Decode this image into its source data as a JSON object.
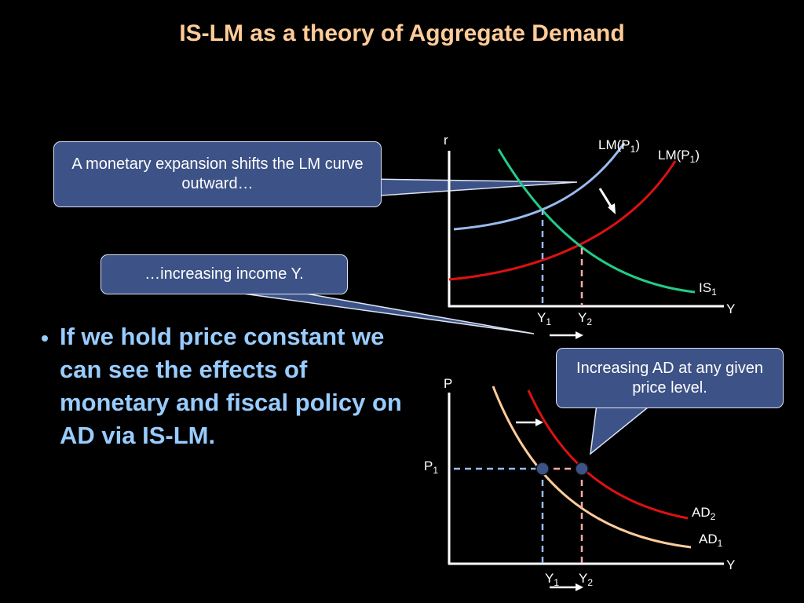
{
  "title": "IS-LM as a theory of Aggregate Demand",
  "callouts": [
    "A monetary expansion shifts the LM curve outward…",
    "…increasing income Y.",
    "Increasing AD at any given price level."
  ],
  "bullet": "If we hold price constant we can see the effects of monetary and fiscal policy on AD via IS-LM.",
  "islm": {
    "y_axis": "r",
    "x_axis": "Y",
    "lm1": {
      "main": "LM(P",
      "sub": "1",
      "tail": ")"
    },
    "lm2": {
      "main": "LM(P",
      "sub": "1",
      "tail": ")"
    },
    "is": {
      "main": "IS",
      "sub": "1"
    },
    "y1": {
      "main": "Y",
      "sub": "1"
    },
    "y2": {
      "main": "Y",
      "sub": "2"
    }
  },
  "ad": {
    "y_axis": "P",
    "x_axis": "Y",
    "p1": {
      "main": "P",
      "sub": "1"
    },
    "ad2": {
      "main": "AD",
      "sub": "2"
    },
    "ad1": {
      "main": "AD",
      "sub": "1"
    },
    "y1": {
      "main": "Y",
      "sub": "1"
    },
    "y2": {
      "main": "Y",
      "sub": "2"
    }
  }
}
